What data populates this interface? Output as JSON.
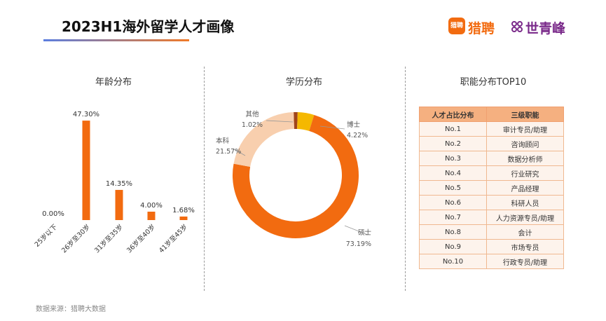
{
  "header": {
    "title": "2023H1海外留学人才画像",
    "brand_logo_text": "猎聘",
    "brand_liepin": "猎聘",
    "brand_sqf": "世青峰",
    "accent_color": "#f26b10",
    "sqf_color": "#7a2a8a"
  },
  "panels": {
    "age_title": "年龄分布",
    "edu_title": "学历分布",
    "func_title": "职能分布TOP10"
  },
  "chart_data": [
    {
      "type": "bar",
      "title": "年龄分布",
      "categories": [
        "25岁以下",
        "26岁至30岁",
        "31岁至35岁",
        "36岁至40岁",
        "41岁至45岁"
      ],
      "values": [
        0.0,
        47.3,
        14.35,
        4.0,
        1.68
      ],
      "value_labels": [
        "0.00%",
        "47.30%",
        "14.35%",
        "4.00%",
        "1.68%"
      ],
      "unit": "%",
      "color": "#f26b10",
      "ylim": [
        0,
        50
      ],
      "grid": false
    },
    {
      "type": "pie",
      "style": "donut",
      "title": "学历分布",
      "slices": [
        {
          "name": "其他",
          "value": 1.02,
          "label": "1.02%",
          "color": "#a0451a"
        },
        {
          "name": "博士",
          "value": 4.22,
          "label": "4.22%",
          "color": "#f5b800"
        },
        {
          "name": "硕士",
          "value": 73.19,
          "label": "73.19%",
          "color": "#f26b10"
        },
        {
          "name": "本科",
          "value": 21.57,
          "label": "21.57%",
          "color": "#f8cfae"
        }
      ],
      "label_order_note": "clockwise from top"
    },
    {
      "type": "table",
      "title": "职能分布TOP10",
      "columns": [
        "人才占比分布",
        "三级职能"
      ],
      "rows": [
        [
          "No.1",
          "审计专员/助理"
        ],
        [
          "No.2",
          "咨询顾问"
        ],
        [
          "No.3",
          "数据分析师"
        ],
        [
          "No.4",
          "行业研究"
        ],
        [
          "No.5",
          "产品经理"
        ],
        [
          "No.6",
          "科研人员"
        ],
        [
          "No.7",
          "人力资源专员/助理"
        ],
        [
          "No.8",
          "会计"
        ],
        [
          "No.9",
          "市场专员"
        ],
        [
          "No.10",
          "行政专员/助理"
        ]
      ]
    }
  ],
  "footer": {
    "source": "数据来源：猎聘大数据"
  }
}
